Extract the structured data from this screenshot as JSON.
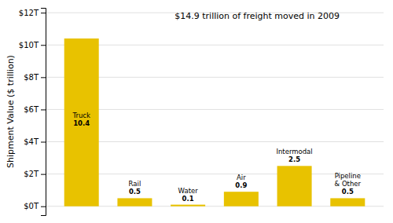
{
  "chart_data": {
    "type": "bar",
    "categories": [
      "Truck",
      "Rail",
      "Water",
      "Air",
      "Intermodal",
      "Pipeline\n& Other"
    ],
    "values": [
      10.4,
      0.5,
      0.1,
      0.9,
      2.5,
      0.5
    ],
    "color": "#E8C200",
    "y_label": "Shipment Value ($ trillion)",
    "annotation": "$14.9 trillion of freight moved in 2009",
    "ylim": [
      -0.55,
      12.3
    ],
    "yticks": [
      {
        "value": 0,
        "label": "$0T"
      },
      {
        "value": 2,
        "label": "$2T"
      },
      {
        "value": 4,
        "label": "$4T"
      },
      {
        "value": 6,
        "label": "$6T"
      },
      {
        "value": 8,
        "label": "$8T"
      },
      {
        "value": 10,
        "label": "$10T"
      },
      {
        "value": 12,
        "label": "$12T"
      }
    ],
    "grid": true,
    "data_labels": true,
    "tick_labels": "y"
  }
}
